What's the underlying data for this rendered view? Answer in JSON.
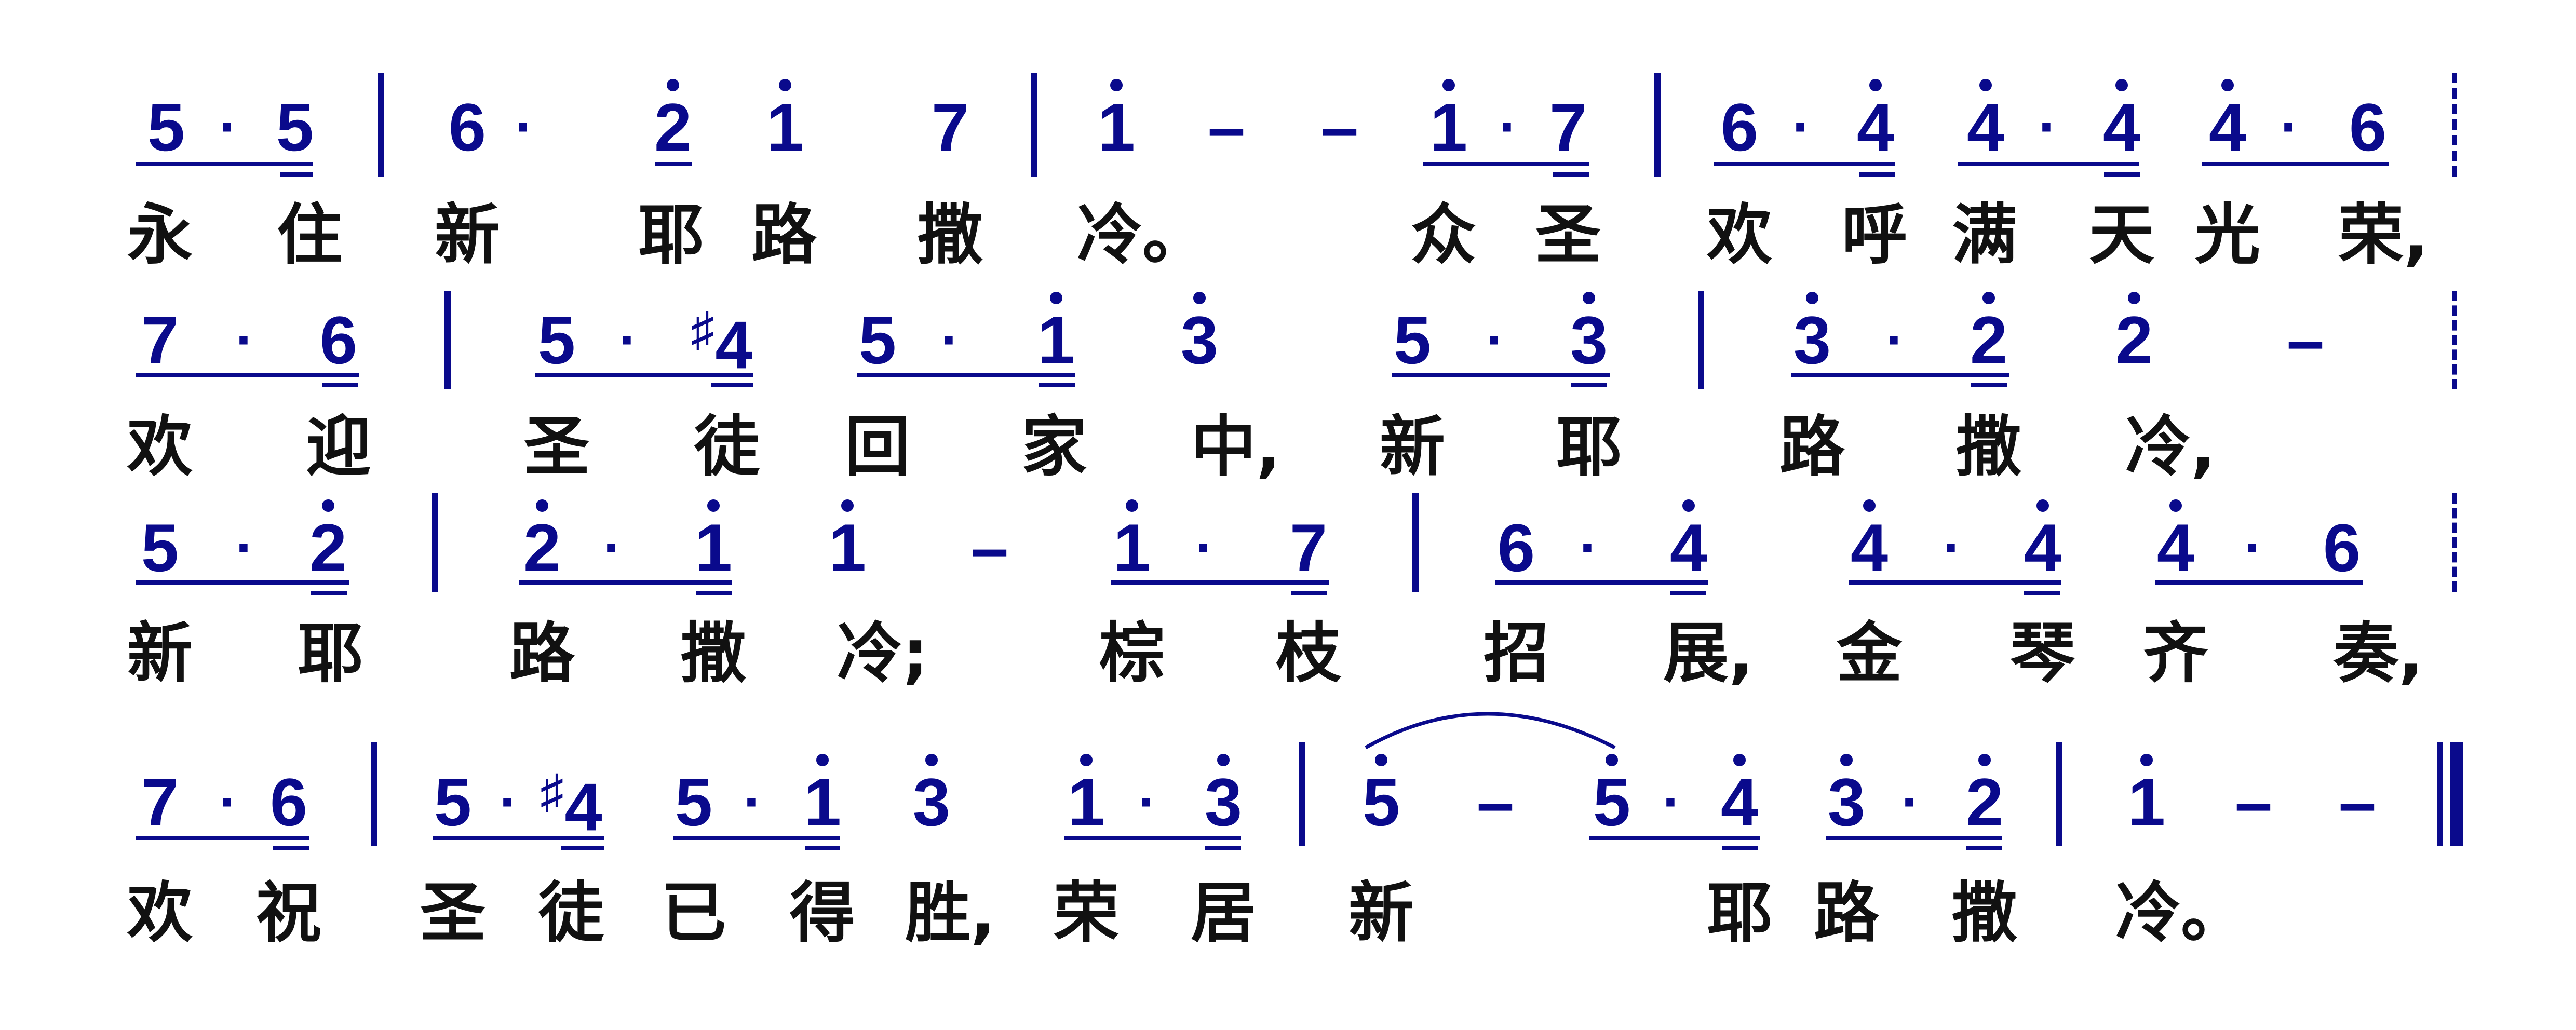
{
  "rows": [
    {
      "notes": [
        "5",
        "·",
        "5",
        "6",
        "·",
        "2",
        "1",
        "7",
        "1",
        "–",
        "–",
        "1",
        "·",
        "7",
        "6",
        "·",
        "4",
        "4",
        "·",
        "4",
        "4",
        "·",
        "6"
      ],
      "lyrics": [
        "永",
        "住",
        "新",
        "耶",
        "路",
        "撒",
        "冷。",
        "众",
        "圣",
        "欢",
        "呼",
        "满",
        "天",
        "光",
        "荣,"
      ]
    },
    {
      "notes": [
        "7",
        "·",
        "6",
        "5",
        "·",
        "4",
        "5",
        "·",
        "1",
        "3",
        "5",
        "·",
        "3",
        "3",
        "·",
        "2",
        "2",
        "–"
      ],
      "lyrics": [
        "欢",
        "迎",
        "圣",
        "徒",
        "回",
        "家",
        "中,",
        "新",
        "耶",
        "路",
        "撒",
        "冷,"
      ]
    },
    {
      "notes": [
        "5",
        "·",
        "2",
        "2",
        "·",
        "1",
        "1",
        "–",
        "1",
        "·",
        "7",
        "6",
        "·",
        "4",
        "4",
        "·",
        "4",
        "4",
        "·",
        "6"
      ],
      "lyrics": [
        "新",
        "耶",
        "路",
        "撒",
        "冷;",
        "棕",
        "枝",
        "招",
        "展,",
        "金",
        "琴",
        "齐",
        "奏,"
      ]
    },
    {
      "notes": [
        "7",
        "·",
        "6",
        "5",
        "·",
        "4",
        "5",
        "·",
        "1",
        "3",
        "1",
        "·",
        "3",
        "5",
        "–",
        "5",
        "·",
        "4",
        "3",
        "·",
        "2",
        "1",
        "–",
        "–"
      ],
      "lyrics": [
        "欢",
        "祝",
        "圣",
        "徒",
        "已",
        "得",
        "胜,",
        "荣",
        "居",
        "新",
        "耶",
        "路",
        "撒",
        "冷。"
      ]
    }
  ],
  "sharp_symbol": "♯",
  "colors": {
    "notes": "#0a0a8c",
    "lyrics": "#111111"
  }
}
